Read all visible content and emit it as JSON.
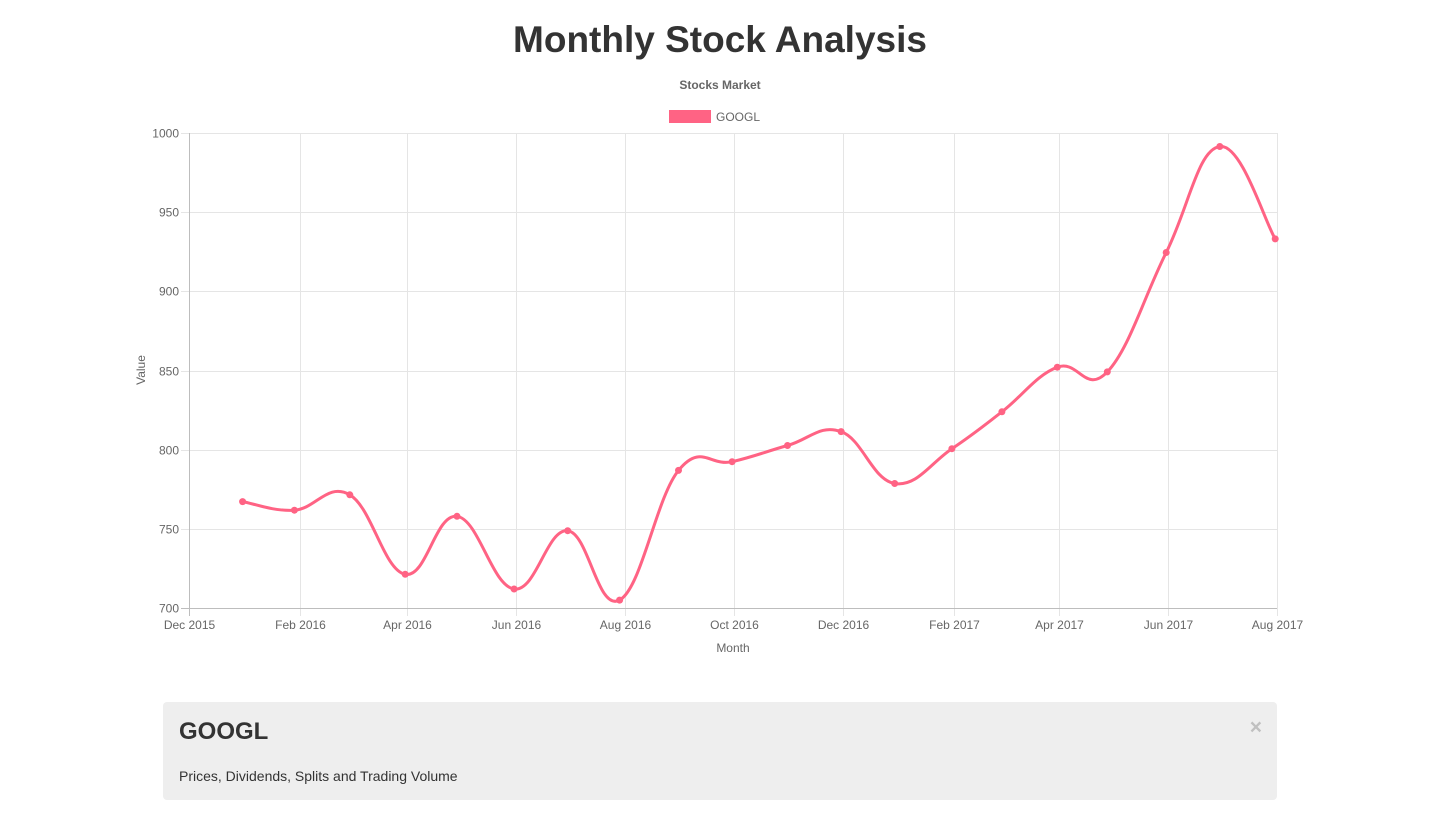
{
  "page": {
    "title": "Monthly Stock Analysis"
  },
  "info_panel": {
    "heading": "GOOGL",
    "description": "Prices, Dividends, Splits and Trading Volume",
    "close_icon": "close-icon",
    "close_glyph": "×"
  },
  "chart_data": {
    "type": "line",
    "title": "Stocks Market",
    "xlabel": "Month",
    "ylabel": "Value",
    "ylim": [
      700,
      1000
    ],
    "y_ticks": [
      700,
      750,
      800,
      850,
      900,
      950,
      1000
    ],
    "x_range": [
      "2015-12-01",
      "2017-08-01"
    ],
    "x_ticks": [
      {
        "date": "2015-12-01",
        "label": "Dec 2015"
      },
      {
        "date": "2016-02-01",
        "label": "Feb 2016"
      },
      {
        "date": "2016-04-01",
        "label": "Apr 2016"
      },
      {
        "date": "2016-06-01",
        "label": "Jun 2016"
      },
      {
        "date": "2016-08-01",
        "label": "Aug 2016"
      },
      {
        "date": "2016-10-01",
        "label": "Oct 2016"
      },
      {
        "date": "2016-12-01",
        "label": "Dec 2016"
      },
      {
        "date": "2017-02-01",
        "label": "Feb 2017"
      },
      {
        "date": "2017-04-01",
        "label": "Apr 2017"
      },
      {
        "date": "2017-06-01",
        "label": "Jun 2017"
      },
      {
        "date": "2017-08-01",
        "label": "Aug 2017"
      }
    ],
    "grid": true,
    "legend_position": "top",
    "series": [
      {
        "name": "GOOGL",
        "color": "#ff6384",
        "points": [
          {
            "x": "2015-12-31",
            "y": 767.2
          },
          {
            "x": "2016-01-29",
            "y": 761.8
          },
          {
            "x": "2016-02-29",
            "y": 771.5
          },
          {
            "x": "2016-03-31",
            "y": 721.3
          },
          {
            "x": "2016-04-29",
            "y": 757.9
          },
          {
            "x": "2016-05-31",
            "y": 712.0
          },
          {
            "x": "2016-06-30",
            "y": 748.8
          },
          {
            "x": "2016-07-29",
            "y": 705.0
          },
          {
            "x": "2016-08-31",
            "y": 786.9
          },
          {
            "x": "2016-09-30",
            "y": 792.4
          },
          {
            "x": "2016-10-31",
            "y": 802.6
          },
          {
            "x": "2016-11-30",
            "y": 811.4
          },
          {
            "x": "2016-12-30",
            "y": 778.6
          },
          {
            "x": "2017-01-31",
            "y": 800.6
          },
          {
            "x": "2017-02-28",
            "y": 823.9
          },
          {
            "x": "2017-03-31",
            "y": 852.1
          },
          {
            "x": "2017-04-28",
            "y": 849.1
          },
          {
            "x": "2017-05-31",
            "y": 924.5
          },
          {
            "x": "2017-06-30",
            "y": 991.5
          },
          {
            "x": "2017-07-31",
            "y": 933.1
          }
        ]
      }
    ]
  }
}
